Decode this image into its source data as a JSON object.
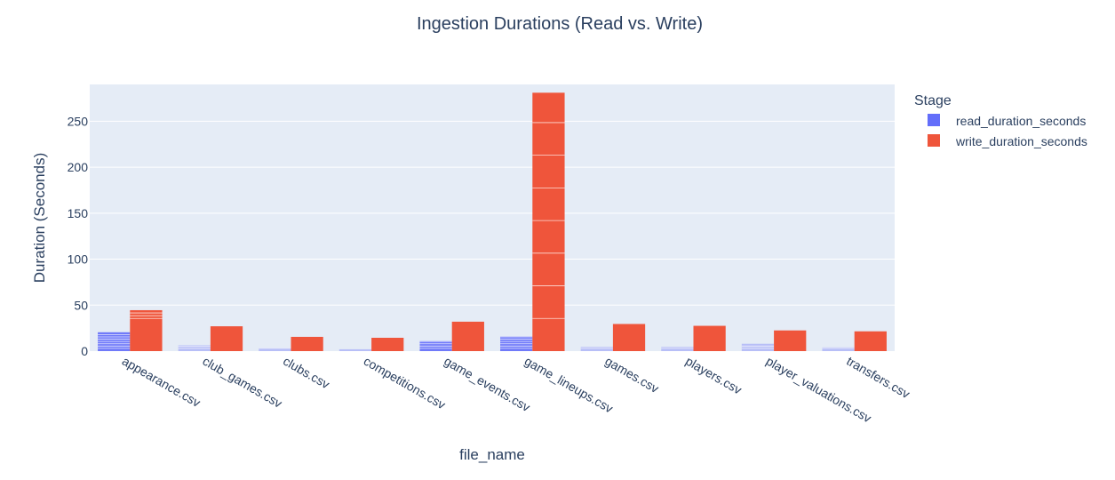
{
  "chart_data": {
    "type": "bar",
    "title": "Ingestion Durations (Read vs. Write)",
    "xlabel": "file_name",
    "ylabel": "Duration (Seconds)",
    "ylim": [
      0,
      290
    ],
    "yticks": [
      0,
      50,
      100,
      150,
      200,
      250
    ],
    "categories": [
      "appearance.csv",
      "club_games.csv",
      "clubs.csv",
      "competitions.csv",
      "game_events.csv",
      "game_lineups.csv",
      "games.csv",
      "players.csv",
      "player_valuations.csv",
      "transfers.csv"
    ],
    "legend": {
      "title": "Stage",
      "position": "top-right"
    },
    "series": [
      {
        "name": "read_duration_seconds",
        "color": "#636efa",
        "values": [
          20.5,
          6.5,
          3.5,
          2.0,
          11.0,
          16.0,
          4.5,
          4.5,
          8.0,
          4.0
        ]
      },
      {
        "name": "write_duration_seconds",
        "color": "#ef553b",
        "values": [
          44.5,
          27.0,
          15.5,
          14.5,
          32.0,
          281.0,
          29.5,
          27.5,
          22.5,
          21.5
        ]
      }
    ],
    "grid": true
  }
}
